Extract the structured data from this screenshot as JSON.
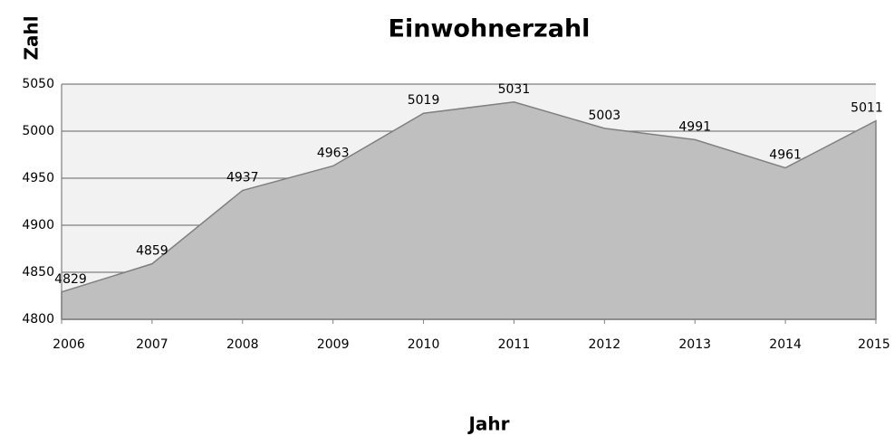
{
  "chart_data": {
    "type": "area",
    "title": "Einwohnerzahl",
    "x_label": "Jahr",
    "y_label": "Zahl",
    "categories": [
      "2006",
      "2007",
      "2008",
      "2009",
      "2010",
      "2011",
      "2012",
      "2013",
      "2014",
      "2015"
    ],
    "series": [
      {
        "name": "Einwohnerzahl",
        "color": "#bfbfbf",
        "values": [
          4829,
          4859,
          4937,
          4963,
          5019,
          5031,
          5003,
          4991,
          4961,
          5011
        ]
      }
    ],
    "ylim": [
      4800,
      5050
    ],
    "yticks": [
      4800,
      4850,
      4900,
      4950,
      5000,
      5050
    ],
    "grid": true,
    "data_labels": true
  }
}
